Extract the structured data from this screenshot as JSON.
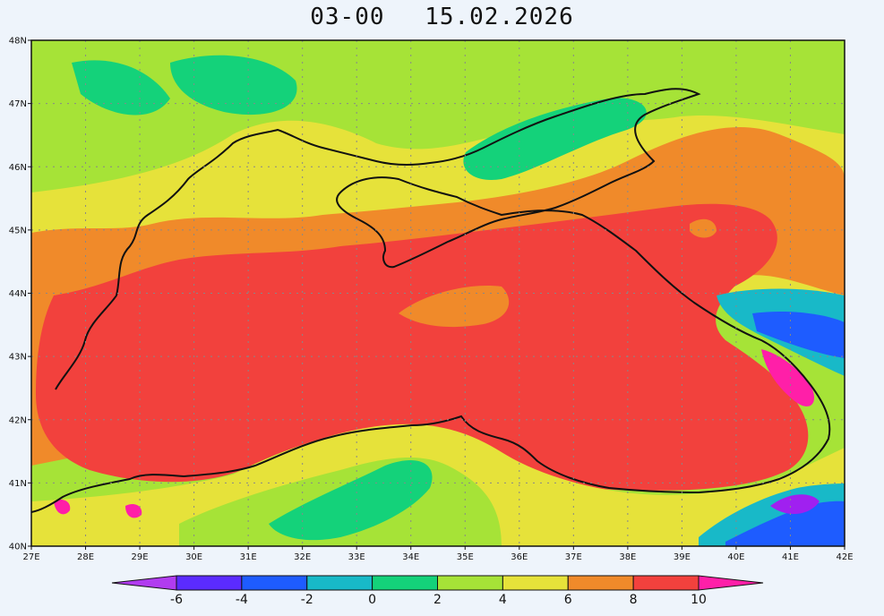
{
  "map": {
    "title_time": "03-00",
    "title_date": "15.02.2026",
    "lat_ticks": [
      "40N",
      "41N",
      "42N",
      "43N",
      "44N",
      "45N",
      "46N",
      "47N",
      "48N"
    ],
    "lon_ticks": [
      "27E",
      "28E",
      "29E",
      "30E",
      "31E",
      "32E",
      "33E",
      "34E",
      "35E",
      "36E",
      "37E",
      "38E",
      "39E",
      "40E",
      "41E",
      "42E"
    ],
    "colorbar": {
      "labels": [
        "-6",
        "-4",
        "-2",
        "0",
        "2",
        "4",
        "6",
        "8",
        "10"
      ],
      "colors": [
        "#a020f0",
        "#5b2bff",
        "#1e5cff",
        "#18b9c8",
        "#14d27a",
        "#a6e337",
        "#e6e23a",
        "#f08a2a",
        "#f2413d",
        "#ff1fa8"
      ],
      "under_color": "#b13cf0",
      "over_color": "#ff1fa8"
    }
  }
}
